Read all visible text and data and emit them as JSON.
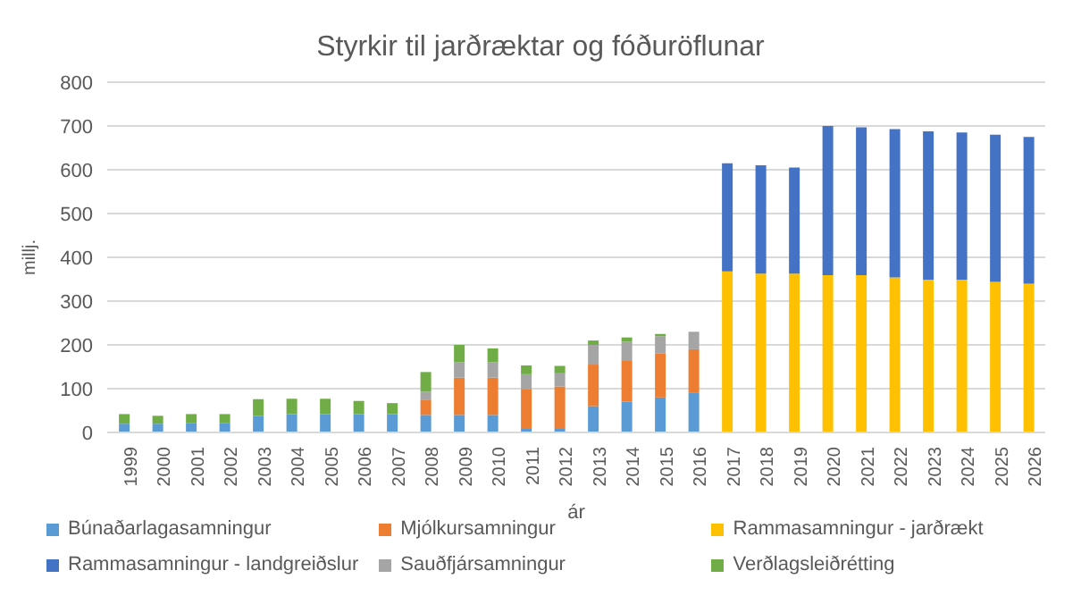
{
  "chart_data": {
    "type": "bar",
    "title": "Styrkir til jarðræktar og fóðuröflunar",
    "xlabel": "ár",
    "ylabel": "millj.",
    "stacked": true,
    "grid": "y",
    "legend": "bottom",
    "ylim": [
      0,
      800
    ],
    "yticks": [
      0,
      100,
      200,
      300,
      400,
      500,
      600,
      700,
      800
    ],
    "categories": [
      "1999",
      "2000",
      "2001",
      "2002",
      "2003",
      "2004",
      "2005",
      "2006",
      "2007",
      "2008",
      "2009",
      "2010",
      "2011",
      "2012",
      "2013",
      "2014",
      "2015",
      "2016",
      "2017",
      "2018",
      "2019",
      "2020",
      "2021",
      "2022",
      "2023",
      "2024",
      "2025",
      "2026"
    ],
    "series": [
      {
        "name": "Búnaðarlagasamningur",
        "color": "#5b9bd5",
        "values": [
          20,
          20,
          22,
          22,
          38,
          42,
          42,
          42,
          42,
          40,
          40,
          40,
          10,
          10,
          60,
          70,
          80,
          90,
          null,
          null,
          null,
          null,
          null,
          null,
          null,
          null,
          null,
          null
        ]
      },
      {
        "name": "Mjólkursamningur",
        "color": "#ed7d31",
        "values": [
          null,
          null,
          null,
          null,
          null,
          null,
          null,
          null,
          null,
          35,
          85,
          85,
          88,
          95,
          95,
          95,
          100,
          100,
          null,
          null,
          null,
          null,
          null,
          null,
          null,
          null,
          null,
          null
        ]
      },
      {
        "name": "Sauðfjársamningur",
        "color": "#a5a5a5",
        "values": [
          null,
          null,
          null,
          null,
          null,
          null,
          null,
          null,
          null,
          18,
          35,
          35,
          35,
          30,
          45,
          42,
          40,
          40,
          null,
          null,
          null,
          null,
          null,
          null,
          null,
          null,
          null,
          null
        ]
      },
      {
        "name": "Rammasamningur - jarðrækt",
        "color": "#ffc000",
        "values": [
          null,
          null,
          null,
          null,
          null,
          null,
          null,
          null,
          null,
          null,
          null,
          null,
          null,
          null,
          null,
          null,
          null,
          null,
          368,
          363,
          363,
          359,
          359,
          354,
          349,
          349,
          344,
          340
        ]
      },
      {
        "name": "Rammasamningur - landgreiðslur",
        "color": "#4472c4",
        "values": [
          null,
          null,
          null,
          null,
          null,
          null,
          null,
          null,
          null,
          null,
          null,
          null,
          null,
          null,
          null,
          null,
          null,
          null,
          247,
          247,
          242,
          341,
          338,
          339,
          339,
          336,
          336,
          335
        ]
      },
      {
        "name": "Verðlagsleiðrétting",
        "color": "#70ad47",
        "values": [
          22,
          18,
          20,
          20,
          38,
          35,
          35,
          30,
          25,
          45,
          40,
          32,
          20,
          17,
          10,
          10,
          5,
          null,
          null,
          null,
          null,
          null,
          null,
          null,
          null,
          null,
          null,
          null
        ]
      }
    ]
  }
}
